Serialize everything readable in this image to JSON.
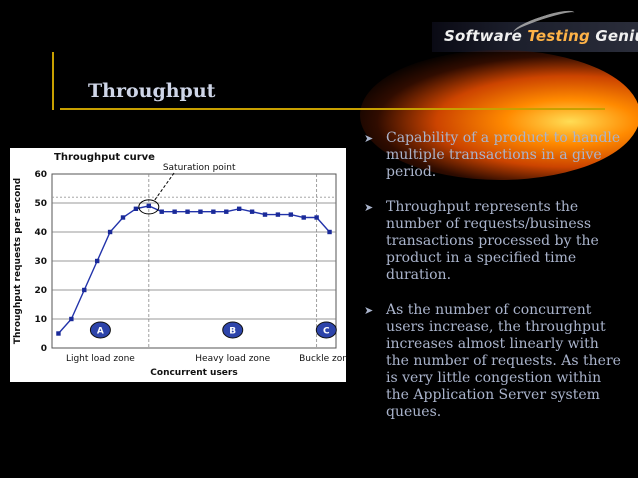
{
  "brand": {
    "name_part1": "Software ",
    "name_highlight": "Testing",
    "name_part2": " Genius"
  },
  "slide": {
    "title": "Throughput"
  },
  "bullets": [
    "Capability of a product to handle multiple transactions in a give period.",
    "Throughput represents the number of requests/business transactions processed by the product in a specified time duration.",
    "As the number of concurrent users increase, the throughput increases almost linearly with the number of requests. As there is very little congestion within the Application Server system queues."
  ],
  "colors": {
    "accent": "#c8a000",
    "text": "#aab4cc",
    "title": "#cfd6e8",
    "series": "#2233aa"
  },
  "icons": {
    "bullet": "arrowhead-bullet-icon"
  },
  "chart_data": {
    "type": "line",
    "title": "Throughput curve",
    "xlabel": "Concurrent users",
    "ylabel": "Throughput requests per second",
    "ylim": [
      0,
      60
    ],
    "yticks": [
      0,
      10,
      20,
      30,
      40,
      50,
      60
    ],
    "grid": true,
    "annotation": "Saturation point",
    "zones": [
      {
        "marker": "A",
        "label": "Light load zone"
      },
      {
        "marker": "B",
        "label": "Heavy load zone"
      },
      {
        "marker": "C",
        "label": "Buckle zone"
      }
    ],
    "series": [
      {
        "x": [
          1,
          2,
          3,
          4,
          5,
          6,
          7,
          8,
          9,
          10,
          11,
          12,
          13,
          14,
          15,
          16,
          17,
          18,
          19,
          20,
          21,
          22
        ],
        "values": [
          5,
          10,
          20,
          30,
          40,
          45,
          48,
          49,
          47,
          47,
          47,
          47,
          47,
          47,
          48,
          47,
          46,
          46,
          46,
          45,
          45,
          40
        ]
      }
    ]
  }
}
